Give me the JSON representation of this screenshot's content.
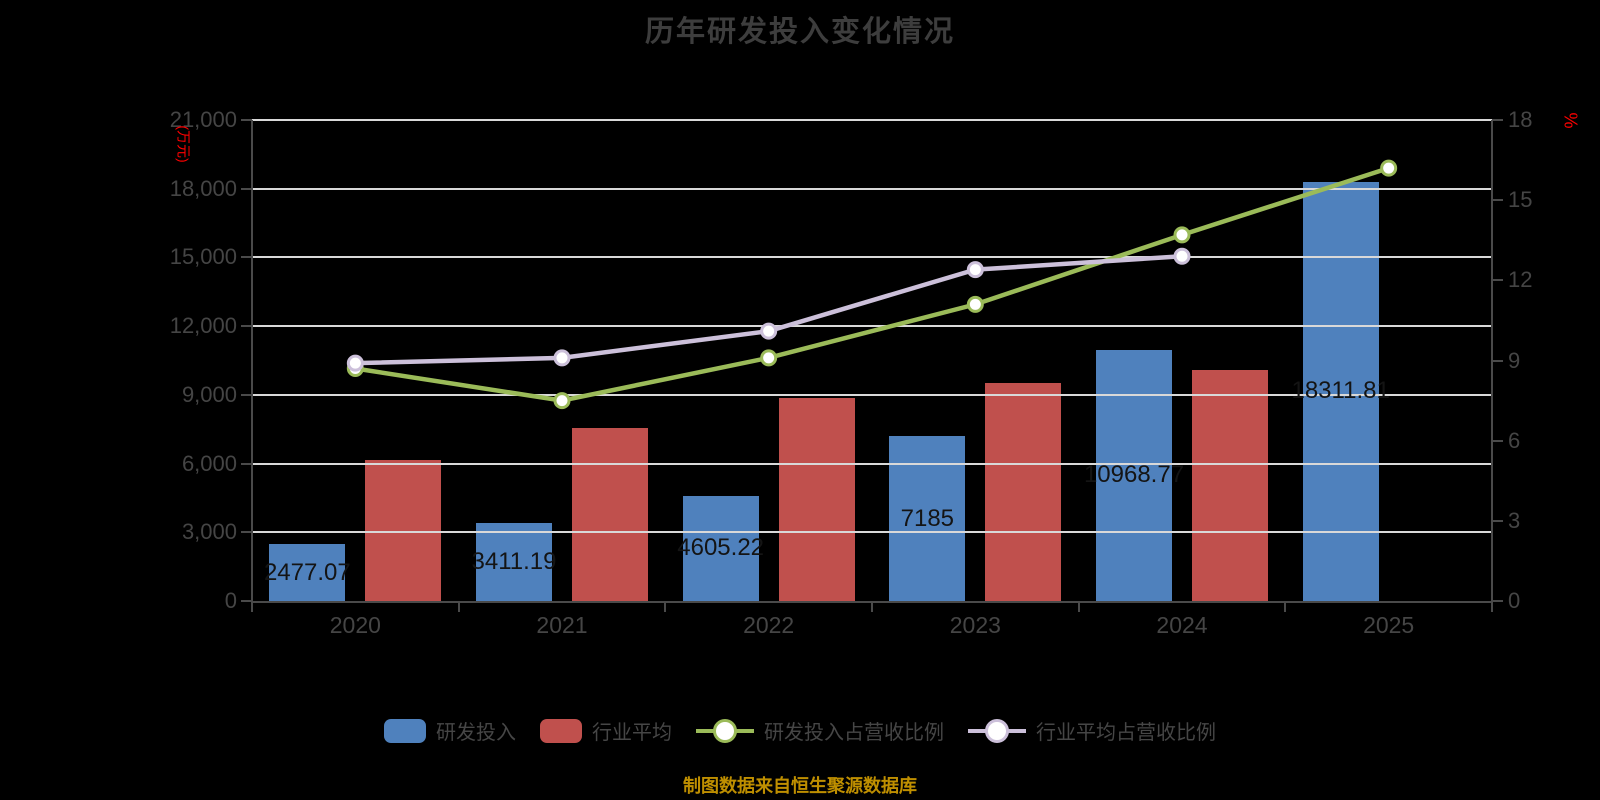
{
  "chart_data": {
    "type": "bar+line",
    "title": "历年研发投入变化情况",
    "source_note": "制图数据来自恒生聚源数据库",
    "categories": [
      "2020",
      "2021",
      "2022",
      "2023",
      "2024",
      "2025"
    ],
    "left_axis": {
      "title": "(万元)",
      "max": 21000,
      "tick_step": 3000,
      "tick_labels": [
        "0",
        "3,000",
        "6,000",
        "9,000",
        "12,000",
        "15,000",
        "18,000",
        "21,000"
      ]
    },
    "right_axis": {
      "title": "%",
      "max": 18,
      "tick_step": 3,
      "tick_labels": [
        "0",
        "3",
        "6",
        "9",
        "12",
        "15",
        "18"
      ]
    },
    "grid": true,
    "legend_position": "bottom",
    "series": [
      {
        "name": "研发投入",
        "slug": "rd-investment",
        "type": "bar",
        "axis": "left",
        "color": "#4F81BD",
        "values": [
          2477.07,
          3411.19,
          4605.22,
          7185,
          10968.77,
          18311.81
        ],
        "labels": [
          "2477.07",
          "3411.19",
          "4605.22",
          "7185",
          "10968.77",
          "18311.81"
        ]
      },
      {
        "name": "行业平均",
        "slug": "industry-average",
        "type": "bar",
        "axis": "left",
        "color": "#C0504D",
        "values": [
          6150,
          7550,
          8860,
          9520,
          10100,
          null
        ],
        "labels": null
      },
      {
        "name": "研发投入占营收比例",
        "slug": "rd-revenue-ratio",
        "type": "line",
        "axis": "right",
        "color": "#9BBB59",
        "values": [
          8.7,
          7.5,
          9.1,
          11.1,
          13.7,
          16.2
        ]
      },
      {
        "name": "行业平均占营收比例",
        "slug": "industry-avg-revenue-ratio",
        "type": "line",
        "axis": "right",
        "color": "#CCC0DA",
        "values": [
          8.9,
          9.1,
          10.1,
          12.4,
          12.9,
          null
        ]
      }
    ],
    "colors": {
      "background": "#000000",
      "grid": "#D9D9D9",
      "axis": "#4a4a4a",
      "tick_text": "#454545",
      "bar_label_text": "#141414",
      "axis_unit_text": "#ff0000",
      "source_note_text": "#BF8F00",
      "marker_fill": "#ffffff"
    }
  }
}
